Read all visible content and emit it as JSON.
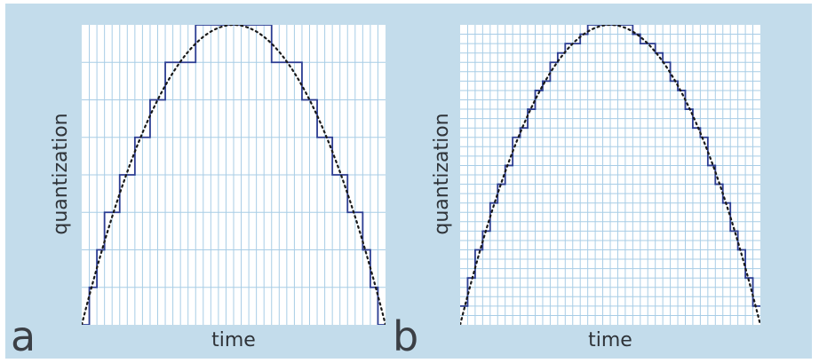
{
  "figure": {
    "colors": {
      "frame_background": "#c3dceb",
      "plot_background": "#ffffff",
      "grid_line": "#a8cde6",
      "staircase": "#2b3d93",
      "curve": "#1a1a1a",
      "text": "#2f3338"
    }
  },
  "panels": [
    {
      "letter": "a",
      "xlabel": "time",
      "ylabel": "quantization",
      "time_divisions": 40,
      "quantization_levels": 8,
      "curve": "parabola (dotted)",
      "signal": "sampled and held (staircase)"
    },
    {
      "letter": "b",
      "xlabel": "time",
      "ylabel": "quantization",
      "time_divisions": 40,
      "quantization_levels": 32,
      "curve": "parabola (dotted)",
      "signal": "sampled and held (staircase)"
    }
  ]
}
